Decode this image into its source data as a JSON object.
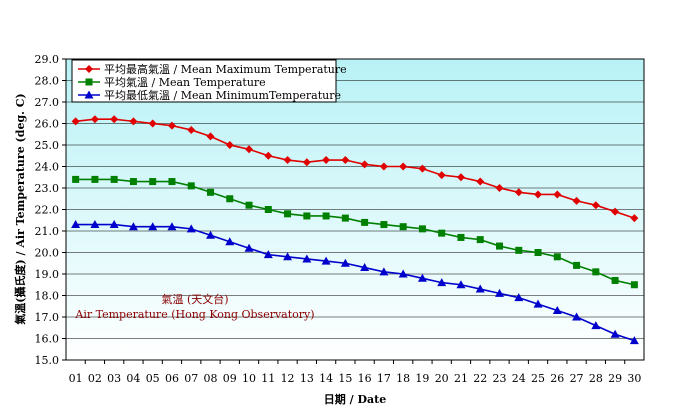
{
  "chart_data": {
    "type": "line",
    "title": "",
    "xlabel": "日期 / Date",
    "ylabel": "氣溫(攝氏度) / Air Temperature (deg. C)",
    "ylim": [
      15.0,
      29.0
    ],
    "y_ticks": [
      "15.0",
      "16.0",
      "17.0",
      "18.0",
      "19.0",
      "20.0",
      "21.0",
      "22.0",
      "23.0",
      "24.0",
      "25.0",
      "26.0",
      "27.0",
      "28.0",
      "29.0"
    ],
    "categories": [
      "01",
      "02",
      "03",
      "04",
      "05",
      "06",
      "07",
      "08",
      "09",
      "10",
      "11",
      "12",
      "13",
      "14",
      "15",
      "16",
      "17",
      "18",
      "19",
      "20",
      "21",
      "22",
      "23",
      "24",
      "25",
      "26",
      "27",
      "28",
      "29",
      "30"
    ],
    "legend_position": "top-left",
    "series": [
      {
        "name": "平均最高氣溫 / Mean Maximum Temperature",
        "color": "#e00000",
        "marker": "diamond",
        "values": [
          26.1,
          26.2,
          26.2,
          26.1,
          26.0,
          25.9,
          25.7,
          25.4,
          25.0,
          24.8,
          24.5,
          24.3,
          24.2,
          24.3,
          24.3,
          24.1,
          24.0,
          24.0,
          23.9,
          23.6,
          23.5,
          23.3,
          23.0,
          22.8,
          22.7,
          22.7,
          22.4,
          22.2,
          21.9,
          21.6
        ]
      },
      {
        "name": "平均氣溫 / Mean Temperature",
        "color": "#008000",
        "marker": "square",
        "values": [
          23.4,
          23.4,
          23.4,
          23.3,
          23.3,
          23.3,
          23.1,
          22.8,
          22.5,
          22.2,
          22.0,
          21.8,
          21.7,
          21.7,
          21.6,
          21.4,
          21.3,
          21.2,
          21.1,
          20.9,
          20.7,
          20.6,
          20.3,
          20.1,
          20.0,
          19.8,
          19.4,
          19.1,
          18.7,
          18.5
        ]
      },
      {
        "name": "平均最低氣溫 / Mean MinimumTemperature",
        "color": "#0000cc",
        "marker": "triangle",
        "values": [
          21.3,
          21.3,
          21.3,
          21.2,
          21.2,
          21.2,
          21.1,
          20.8,
          20.5,
          20.2,
          19.9,
          19.8,
          19.7,
          19.6,
          19.5,
          19.3,
          19.1,
          19.0,
          18.8,
          18.6,
          18.5,
          18.3,
          18.1,
          17.9,
          17.6,
          17.3,
          17.0,
          16.6,
          16.2,
          15.9
        ]
      }
    ],
    "annotations": [
      {
        "text": "氣溫 (天文台)",
        "color": "#8b0000"
      },
      {
        "text": "Air Temperature (Hong Kong Observatory)",
        "color": "#8b0000"
      }
    ]
  }
}
